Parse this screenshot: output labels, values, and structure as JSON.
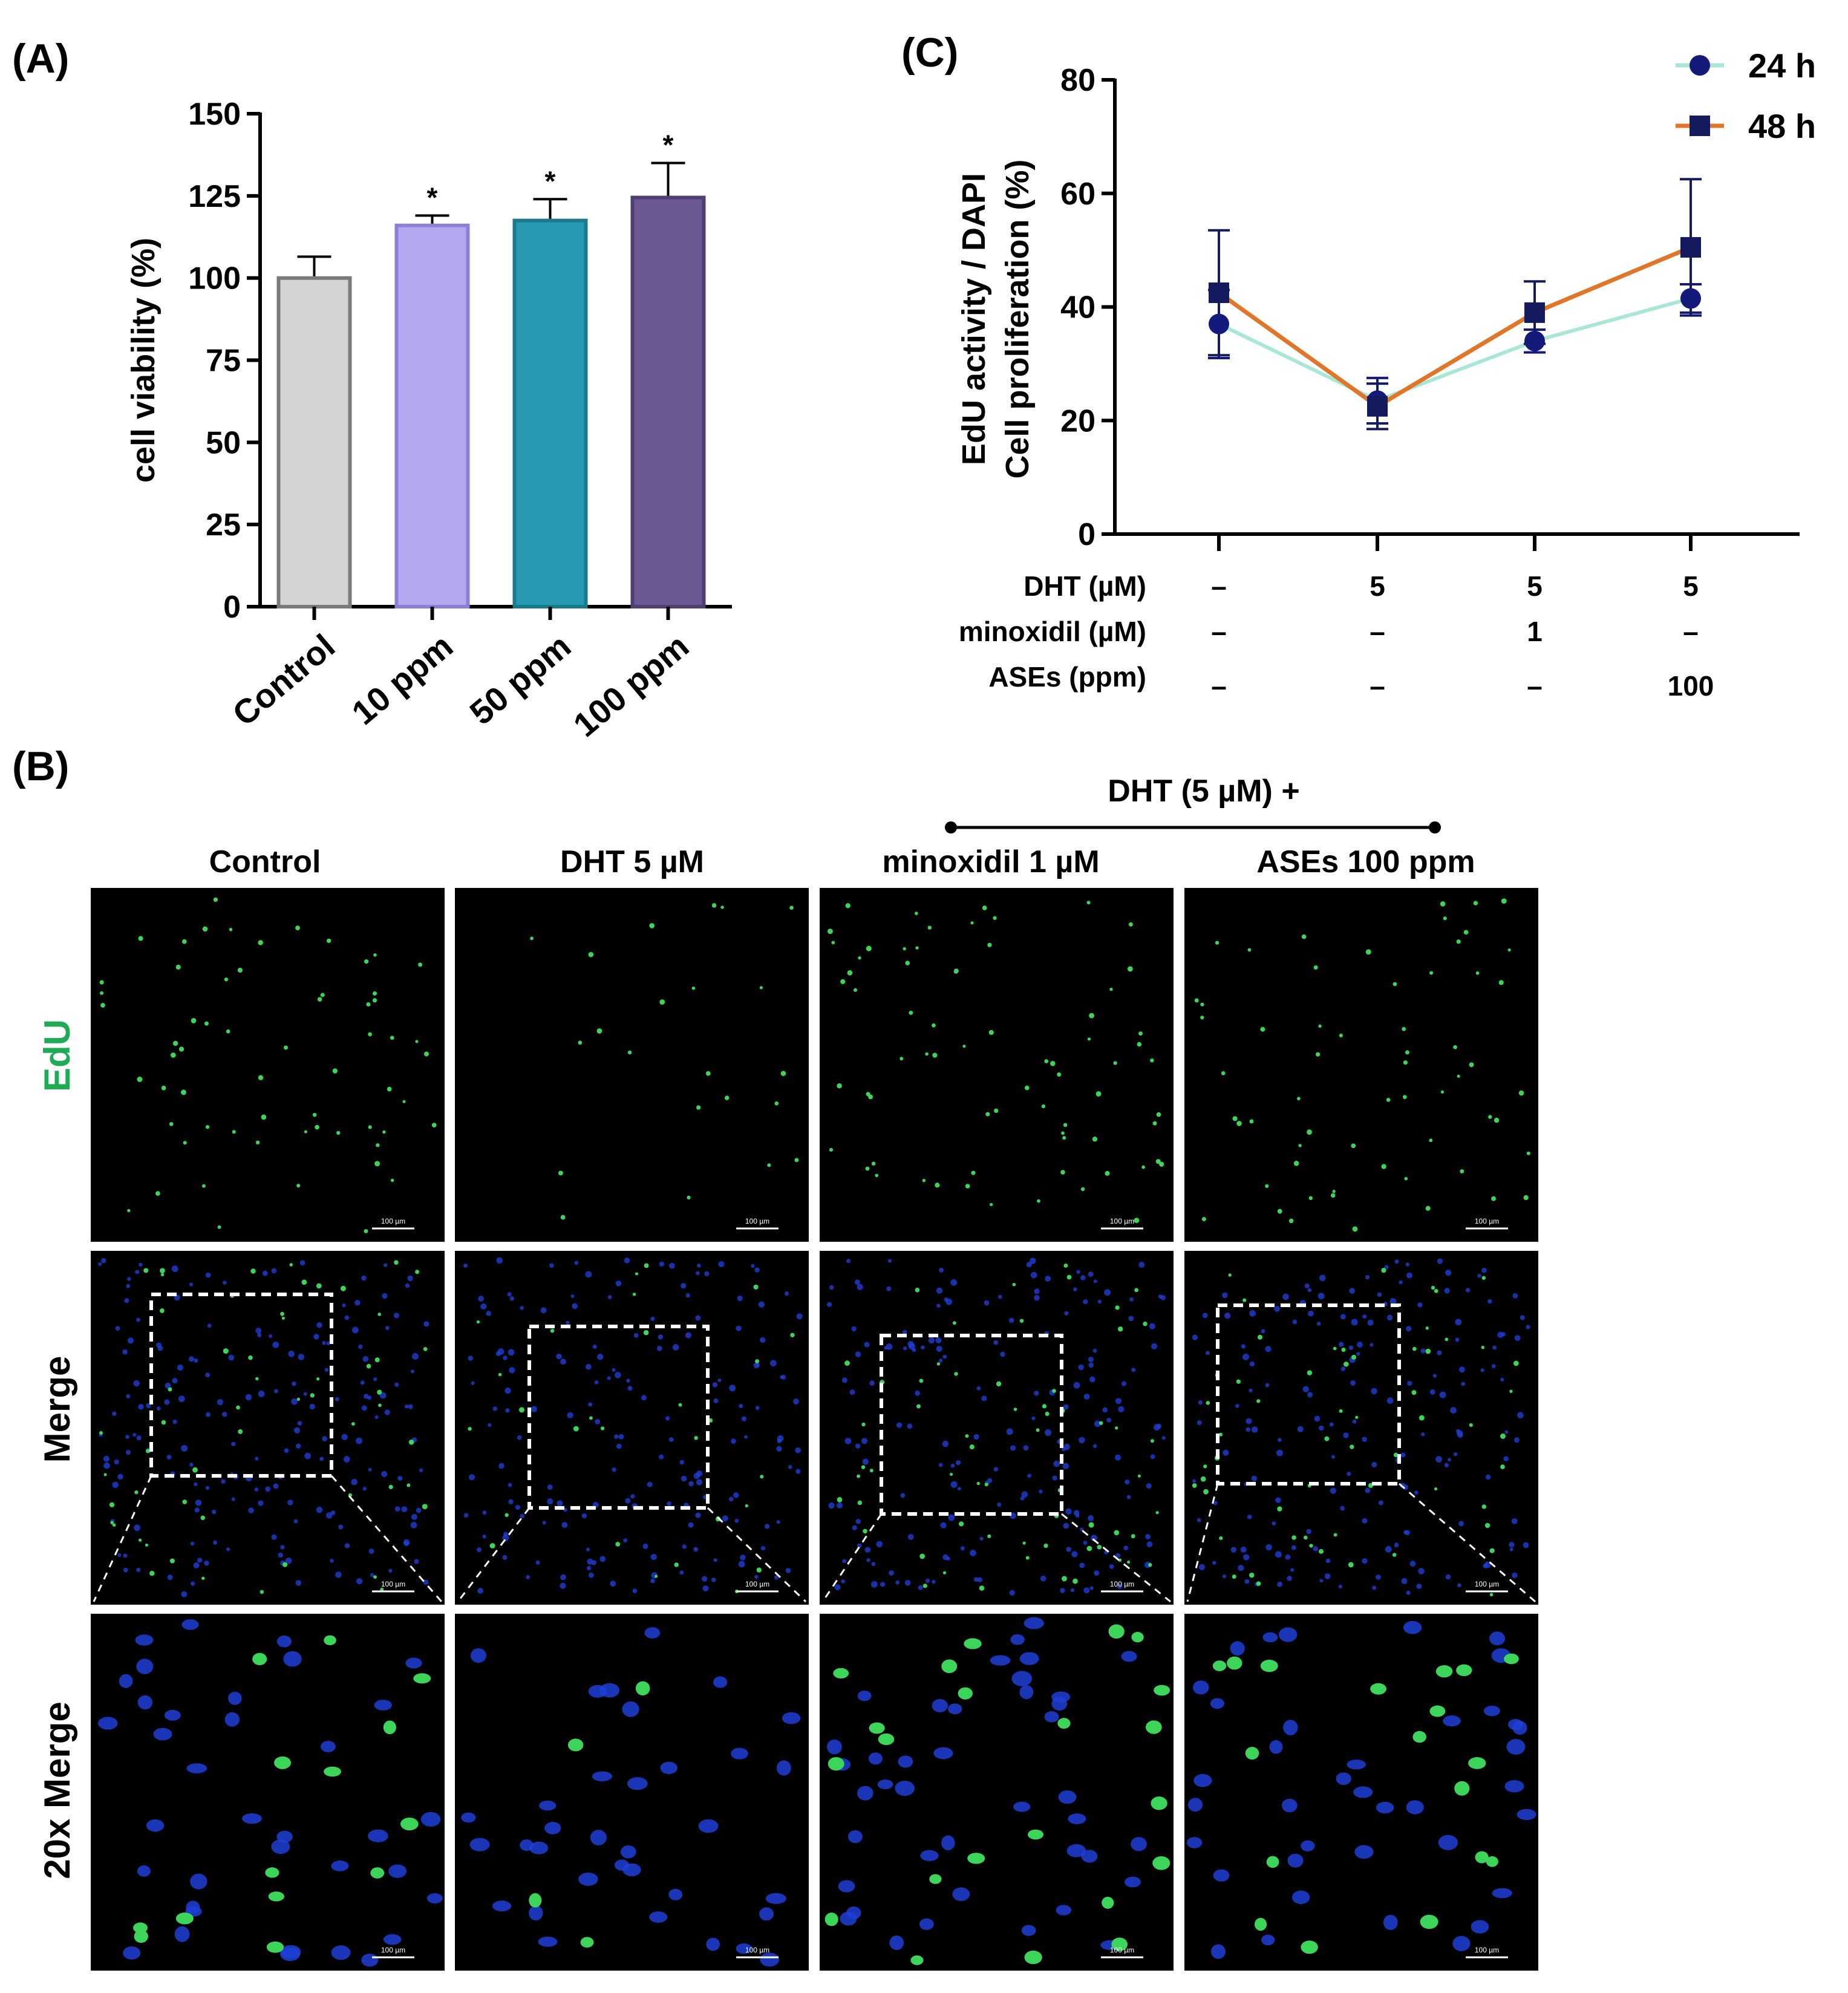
{
  "panels": {
    "a_label": "(A)",
    "b_label": "(B)",
    "c_label": "(C)"
  },
  "chart_data": [
    {
      "id": "A",
      "type": "bar",
      "categories": [
        "Control",
        "10 ppm",
        "50 ppm",
        "100 ppm"
      ],
      "values": [
        100,
        116,
        117.5,
        124.5
      ],
      "errors": [
        6.5,
        3,
        6.5,
        10.5
      ],
      "significance": [
        "",
        "*",
        "*",
        "*"
      ],
      "colors": [
        "#d4d4d4",
        "#b3a7f0",
        "#2799b0",
        "#6c5893"
      ],
      "edge_colors": [
        "#7a7a7a",
        "#8d7fd6",
        "#1c7a8c",
        "#4f3f72"
      ],
      "ylabel": "cell viability (%)",
      "ylim": [
        0,
        150
      ],
      "yticks": [
        0,
        25,
        50,
        75,
        100,
        125,
        150
      ]
    },
    {
      "id": "C",
      "type": "line",
      "x": [
        "1",
        "2",
        "3",
        "4"
      ],
      "series": [
        {
          "name": "24 h",
          "values": [
            37,
            23.5,
            34,
            41.5
          ],
          "errors": [
            6,
            4,
            2,
            2.5
          ],
          "line_color": "#a8e6d6",
          "marker": "circle",
          "marker_color": "#141a7a"
        },
        {
          "name": "48 h",
          "values": [
            42.5,
            22.5,
            39,
            50.5
          ],
          "errors": [
            11,
            4,
            5.5,
            12
          ],
          "line_color": "#e0762a",
          "marker": "square",
          "marker_color": "#141a5e"
        }
      ],
      "ylabel_line1": "EdU activity / DAPI",
      "ylabel_line2": "Cell proliferation (%)",
      "ylim": [
        0,
        80
      ],
      "yticks": [
        0,
        20,
        40,
        60,
        80
      ],
      "treatment_table": {
        "rows": [
          {
            "label": "DHT (µM)",
            "values": [
              "–",
              "5",
              "5",
              "5"
            ]
          },
          {
            "label": "minoxidil (µM)",
            "values": [
              "–",
              "–",
              "1",
              "–"
            ]
          },
          {
            "label": "ASEs (ppm)",
            "values": [
              "–",
              "–",
              "–",
              "100"
            ]
          }
        ]
      }
    }
  ],
  "microscopy": {
    "bracket_label": "DHT (5 µM) +",
    "columns": [
      "Control",
      "DHT 5 µM",
      "minoxidil 1 µM",
      "ASEs 100 ppm"
    ],
    "rows": [
      "EdU",
      "Merge",
      "20x Merge"
    ],
    "scale_bar_label": "100 µm",
    "colors": {
      "edu": "#3dd45a",
      "dapi": "#1f3fd6",
      "row_label_edu": "#1faa55"
    }
  }
}
